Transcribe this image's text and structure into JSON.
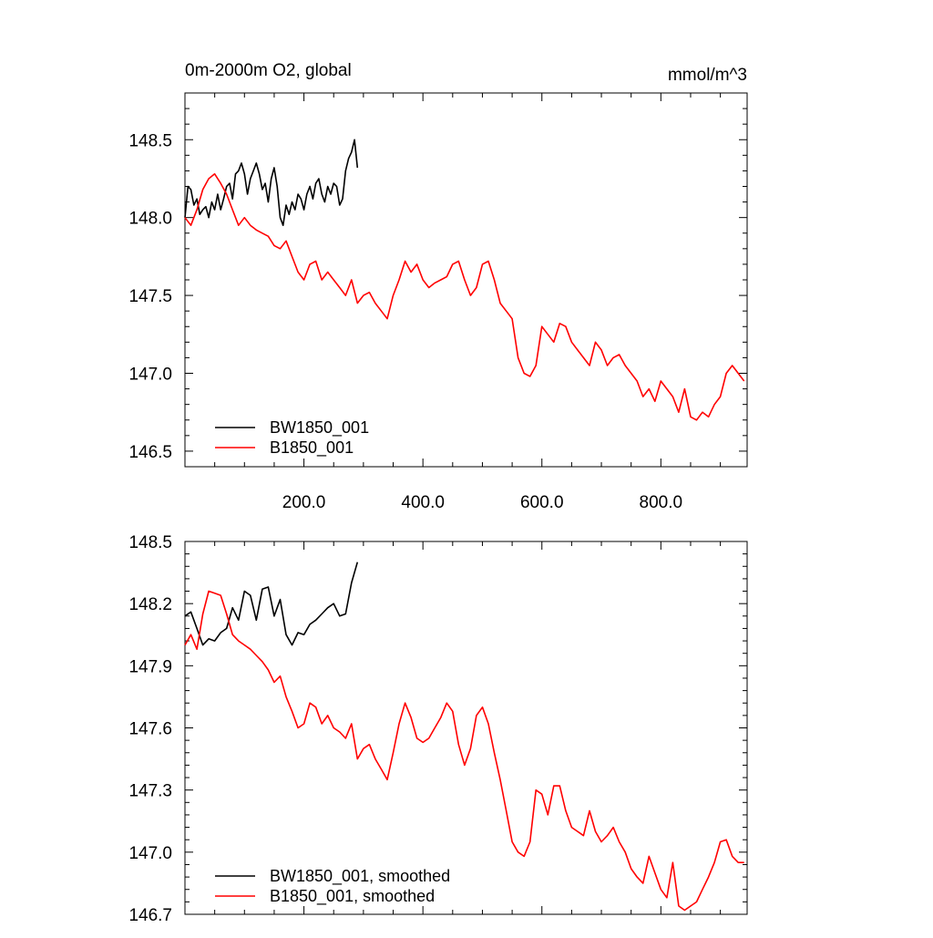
{
  "chart_data": [
    {
      "type": "line",
      "title_left": "0m-2000m O2, global",
      "title_right": "mmol/m^3",
      "xlim": [
        0,
        945
      ],
      "ylim": [
        146.4,
        148.8
      ],
      "x_tick_labels": [
        {
          "value": 200,
          "label": "200.0"
        },
        {
          "value": 400,
          "label": "400.0"
        },
        {
          "value": 600,
          "label": "600.0"
        },
        {
          "value": 800,
          "label": "800.0"
        }
      ],
      "y_tick_labels": [
        {
          "value": 146.5,
          "label": "146.5"
        },
        {
          "value": 147.0,
          "label": "147.0"
        },
        {
          "value": 147.5,
          "label": "147.5"
        },
        {
          "value": 148.0,
          "label": "148.0"
        },
        {
          "value": 148.5,
          "label": "148.5"
        }
      ],
      "legend_position": "bottom-left",
      "series": [
        {
          "name": "BW1850_001",
          "color": "#000000",
          "x": [
            0,
            5,
            10,
            15,
            20,
            25,
            30,
            35,
            40,
            45,
            50,
            55,
            60,
            65,
            70,
            75,
            80,
            85,
            90,
            95,
            100,
            105,
            110,
            115,
            120,
            125,
            130,
            135,
            140,
            145,
            150,
            155,
            160,
            165,
            170,
            175,
            180,
            185,
            190,
            195,
            200,
            205,
            210,
            215,
            220,
            225,
            230,
            235,
            240,
            245,
            250,
            255,
            260,
            265,
            270,
            275,
            280,
            285,
            290
          ],
          "values": [
            148.0,
            148.2,
            148.18,
            148.08,
            148.12,
            148.02,
            148.05,
            148.07,
            148.0,
            148.1,
            148.05,
            148.15,
            148.05,
            148.12,
            148.2,
            148.22,
            148.12,
            148.28,
            148.3,
            148.35,
            148.28,
            148.15,
            148.25,
            148.3,
            148.35,
            148.28,
            148.18,
            148.22,
            148.1,
            148.25,
            148.32,
            148.2,
            148.0,
            147.95,
            148.08,
            148.02,
            148.1,
            148.05,
            148.15,
            148.12,
            148.05,
            148.15,
            148.2,
            148.12,
            148.22,
            148.25,
            148.15,
            148.1,
            148.2,
            148.15,
            148.22,
            148.2,
            148.08,
            148.12,
            148.3,
            148.38,
            148.42,
            148.5,
            148.32
          ]
        },
        {
          "name": "B1850_001",
          "color": "#ff0000",
          "x": [
            0,
            10,
            20,
            30,
            40,
            50,
            60,
            70,
            80,
            90,
            100,
            110,
            120,
            130,
            140,
            150,
            160,
            170,
            180,
            190,
            200,
            210,
            220,
            230,
            240,
            250,
            260,
            270,
            280,
            290,
            300,
            310,
            320,
            330,
            340,
            350,
            360,
            370,
            380,
            390,
            400,
            410,
            420,
            430,
            440,
            450,
            460,
            470,
            480,
            490,
            500,
            510,
            520,
            530,
            540,
            550,
            560,
            570,
            580,
            590,
            600,
            610,
            620,
            630,
            640,
            650,
            660,
            670,
            680,
            690,
            700,
            710,
            720,
            730,
            740,
            750,
            760,
            770,
            780,
            790,
            800,
            810,
            820,
            830,
            840,
            850,
            860,
            870,
            880,
            890,
            900,
            910,
            920,
            930,
            940
          ],
          "values": [
            148.0,
            147.95,
            148.05,
            148.18,
            148.25,
            148.28,
            148.22,
            148.15,
            148.05,
            147.95,
            148.0,
            147.95,
            147.92,
            147.9,
            147.88,
            147.82,
            147.8,
            147.85,
            147.75,
            147.65,
            147.6,
            147.7,
            147.72,
            147.6,
            147.65,
            147.6,
            147.55,
            147.5,
            147.6,
            147.45,
            147.5,
            147.52,
            147.45,
            147.4,
            147.35,
            147.5,
            147.6,
            147.72,
            147.65,
            147.7,
            147.6,
            147.55,
            147.58,
            147.6,
            147.62,
            147.7,
            147.72,
            147.6,
            147.5,
            147.55,
            147.7,
            147.72,
            147.6,
            147.45,
            147.4,
            147.35,
            147.1,
            147.0,
            146.98,
            147.05,
            147.3,
            147.25,
            147.2,
            147.32,
            147.3,
            147.2,
            147.15,
            147.1,
            147.05,
            147.2,
            147.15,
            147.05,
            147.1,
            147.12,
            147.05,
            147.0,
            146.95,
            146.85,
            146.9,
            146.82,
            146.95,
            146.9,
            146.85,
            146.75,
            146.9,
            146.72,
            146.7,
            146.75,
            146.72,
            146.8,
            146.85,
            147.0,
            147.05,
            147.0,
            146.95
          ]
        }
      ]
    },
    {
      "type": "line",
      "xlim": [
        0,
        945
      ],
      "ylim": [
        146.7,
        148.5
      ],
      "y_tick_labels": [
        {
          "value": 146.7,
          "label": "146.7"
        },
        {
          "value": 147.0,
          "label": "147.0"
        },
        {
          "value": 147.3,
          "label": "147.3"
        },
        {
          "value": 147.6,
          "label": "147.6"
        },
        {
          "value": 147.9,
          "label": "147.9"
        },
        {
          "value": 148.2,
          "label": "148.2"
        },
        {
          "value": 148.5,
          "label": "148.5"
        }
      ],
      "legend_position": "bottom-left",
      "series": [
        {
          "name": "BW1850_001, smoothed",
          "color": "#000000",
          "x": [
            0,
            10,
            20,
            30,
            40,
            50,
            60,
            70,
            80,
            90,
            100,
            110,
            120,
            130,
            140,
            150,
            160,
            170,
            180,
            190,
            200,
            210,
            220,
            230,
            240,
            250,
            260,
            270,
            280,
            290
          ],
          "values": [
            148.14,
            148.16,
            148.08,
            148.0,
            148.03,
            148.02,
            148.06,
            148.08,
            148.18,
            148.12,
            148.26,
            148.24,
            148.12,
            148.27,
            148.28,
            148.14,
            148.22,
            148.05,
            148.0,
            148.06,
            148.05,
            148.1,
            148.12,
            148.15,
            148.18,
            148.2,
            148.14,
            148.15,
            148.3,
            148.4
          ]
        },
        {
          "name": "B1850_001, smoothed",
          "color": "#ff0000",
          "x": [
            0,
            10,
            20,
            30,
            40,
            50,
            60,
            70,
            80,
            90,
            100,
            110,
            120,
            130,
            140,
            150,
            160,
            170,
            180,
            190,
            200,
            210,
            220,
            230,
            240,
            250,
            260,
            270,
            280,
            290,
            300,
            310,
            320,
            330,
            340,
            350,
            360,
            370,
            380,
            390,
            400,
            410,
            420,
            430,
            440,
            450,
            460,
            470,
            480,
            490,
            500,
            510,
            520,
            530,
            540,
            550,
            560,
            570,
            580,
            590,
            600,
            610,
            620,
            630,
            640,
            650,
            660,
            670,
            680,
            690,
            700,
            710,
            720,
            730,
            740,
            750,
            760,
            770,
            780,
            790,
            800,
            810,
            820,
            830,
            840,
            850,
            860,
            870,
            880,
            890,
            900,
            910,
            920,
            930,
            940
          ],
          "values": [
            148.0,
            148.05,
            147.98,
            148.15,
            148.26,
            148.25,
            148.24,
            148.15,
            148.05,
            148.02,
            148.0,
            147.98,
            147.95,
            147.92,
            147.88,
            147.82,
            147.85,
            147.75,
            147.68,
            147.6,
            147.62,
            147.72,
            147.7,
            147.62,
            147.66,
            147.6,
            147.58,
            147.55,
            147.62,
            147.45,
            147.5,
            147.52,
            147.45,
            147.4,
            147.35,
            147.48,
            147.62,
            147.72,
            147.65,
            147.55,
            147.53,
            147.55,
            147.6,
            147.65,
            147.72,
            147.68,
            147.52,
            147.42,
            147.5,
            147.66,
            147.7,
            147.62,
            147.48,
            147.35,
            147.2,
            147.05,
            147.0,
            146.98,
            147.05,
            147.3,
            147.28,
            147.18,
            147.32,
            147.32,
            147.2,
            147.12,
            147.1,
            147.08,
            147.2,
            147.1,
            147.05,
            147.08,
            147.12,
            147.05,
            147.0,
            146.92,
            146.88,
            146.85,
            146.98,
            146.9,
            146.82,
            146.78,
            146.95,
            146.74,
            146.72,
            146.74,
            146.76,
            146.82,
            146.88,
            146.95,
            147.05,
            147.06,
            146.98,
            146.95,
            146.95
          ]
        }
      ]
    }
  ]
}
